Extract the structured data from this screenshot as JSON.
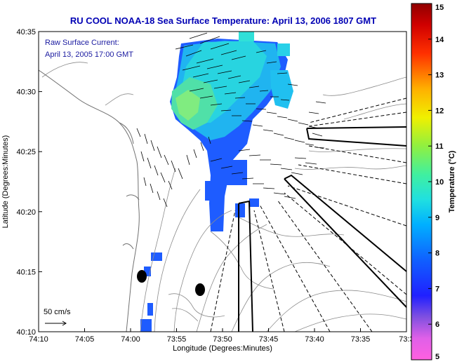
{
  "map": {
    "title": "RU COOL  NOAA-18  Sea Surface Temperature:  April 13, 2006 1807 GMT",
    "title_color": "#0000b4",
    "annotation_line1": "Raw Surface Current:",
    "annotation_line2": "April 13, 2005 17:00 GMT",
    "annotation_color": "#1a1aa0",
    "scale_label": "50 cm/s",
    "xlabel": "Longitude (Degrees:Minutes)",
    "ylabel": "Latitude (Degrees:Minutes)",
    "x_ticks": [
      "74:10",
      "74:05",
      "74:00",
      "73:55",
      "73:50",
      "73:45",
      "73:40",
      "73:35",
      "73:3"
    ],
    "y_ticks": [
      "40:35",
      "40:30",
      "40:25",
      "40:20",
      "40:15",
      "40:10"
    ],
    "colorbar_label": "Temperature (°C)",
    "colorbar_ticks": [
      "15",
      "14",
      "13",
      "12",
      "11",
      "10",
      "9",
      "8",
      "7",
      "6",
      "5"
    ],
    "colorbar_range": [
      5,
      15
    ],
    "colors": {
      "sst_low": "#1e5cff",
      "sst_mid": "#20c8e8",
      "sst_high": "#60e890",
      "bathymetry": "#8c8c8c",
      "coast": "#707070",
      "vectors": "#000000"
    }
  }
}
